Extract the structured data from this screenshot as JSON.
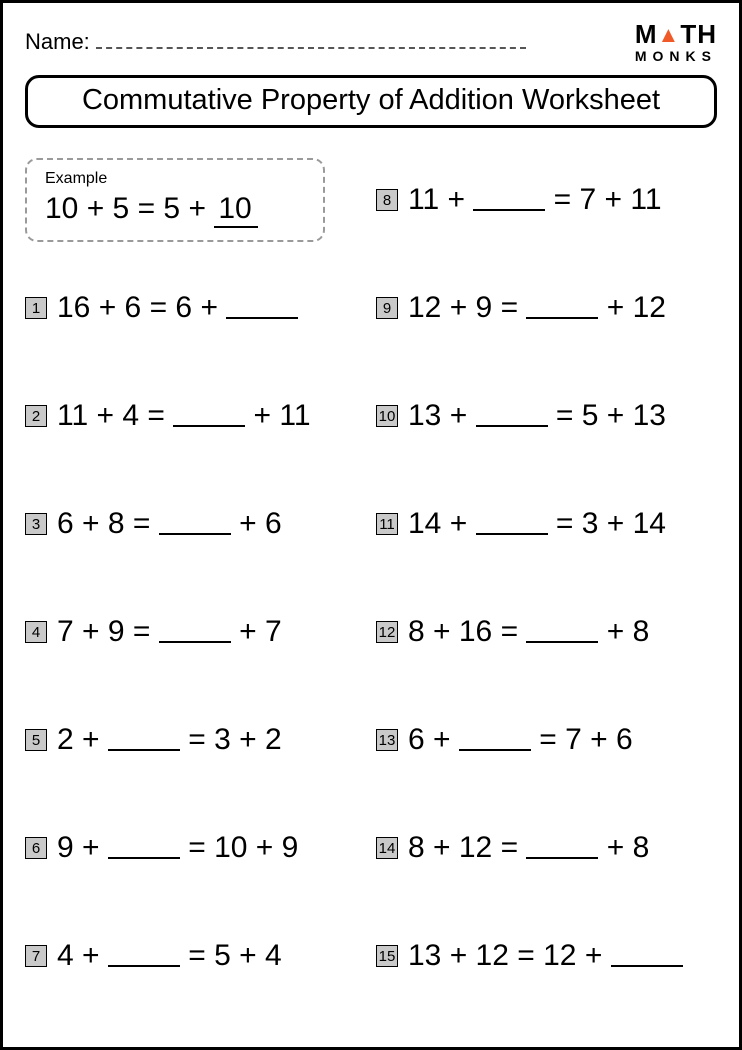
{
  "header": {
    "name_label": "Name:",
    "logo_m1": "M",
    "logo_th": "TH",
    "logo_bottom": "MONKS"
  },
  "title": "Commutative Property of Addition Worksheet",
  "example": {
    "label": "Example",
    "lhs": "10 + 5 = 5 +",
    "answer": "10"
  },
  "problems": [
    {
      "n": "1",
      "before": "16 + 6 = 6 + ",
      "after": ""
    },
    {
      "n": "2",
      "before": "11 + 4 = ",
      "after": " + 11"
    },
    {
      "n": "3",
      "before": "6 + 8 = ",
      "after": " + 6"
    },
    {
      "n": "4",
      "before": "7 + 9 = ",
      "after": " + 7"
    },
    {
      "n": "5",
      "before": "2 + ",
      "after": " = 3 + 2"
    },
    {
      "n": "6",
      "before": "9 + ",
      "after": " = 10 + 9"
    },
    {
      "n": "7",
      "before": "4 + ",
      "after": " = 5 + 4"
    },
    {
      "n": "8",
      "before": "11 + ",
      "after": " = 7 + 11"
    },
    {
      "n": "9",
      "before": "12 + 9 = ",
      "after": " + 12"
    },
    {
      "n": "10",
      "before": "13 + ",
      "after": " = 5 + 13"
    },
    {
      "n": "11",
      "before": "14 + ",
      "after": " = 3 + 14"
    },
    {
      "n": "12",
      "before": "8 + 16 = ",
      "after": " + 8"
    },
    {
      "n": "13",
      "before": "6 + ",
      "after": " = 7 + 6"
    },
    {
      "n": "14",
      "before": "8 + 12 = ",
      "after": " + 8"
    },
    {
      "n": "15",
      "before": "13 + 12 = 12 + ",
      "after": ""
    }
  ],
  "colors": {
    "border": "#000000",
    "numbox_bg": "#c9c9c9",
    "logo_accent": "#f05a28",
    "dash": "#9a9a9a"
  },
  "typography": {
    "title_fontsize": 29,
    "equation_fontsize": 30,
    "name_fontsize": 22,
    "numbox_fontsize": 15
  }
}
